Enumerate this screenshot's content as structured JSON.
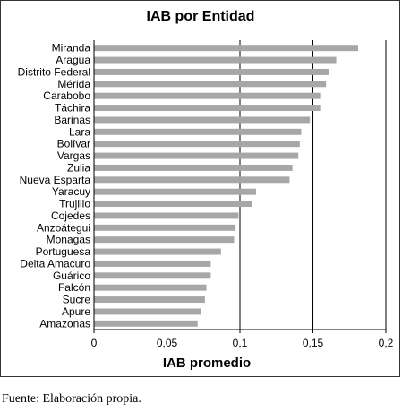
{
  "chart_data": {
    "type": "bar",
    "orientation": "horizontal",
    "title": "IAB por Entidad",
    "xlabel": "IAB promedio",
    "ylabel": "",
    "xlim": [
      0,
      0.2
    ],
    "ticks": [
      "0",
      "0,05",
      "0,1",
      "0,15",
      "0,2"
    ],
    "tick_values": [
      0,
      0.05,
      0.1,
      0.15,
      0.2
    ],
    "grid": true,
    "legend": "none",
    "bar_color": "#a7a7a7",
    "categories": [
      "Miranda",
      "Aragua",
      "Distrito Federal",
      "Mérida",
      "Carabobo",
      "Táchira",
      "Barinas",
      "Lara",
      "Bolívar",
      "Vargas",
      "Zulia",
      "Nueva Esparta",
      "Yaracuy",
      "Trujillo",
      "Cojedes",
      "Anzoátegui",
      "Monagas",
      "Portuguesa",
      "Delta Amacuro",
      "Guárico",
      "Falcón",
      "Sucre",
      "Apure",
      "Amazonas"
    ],
    "values": [
      0.181,
      0.166,
      0.161,
      0.159,
      0.155,
      0.155,
      0.148,
      0.142,
      0.141,
      0.14,
      0.136,
      0.134,
      0.111,
      0.108,
      0.099,
      0.097,
      0.096,
      0.087,
      0.08,
      0.08,
      0.077,
      0.076,
      0.073,
      0.071
    ]
  },
  "source_note": "Fuente: Elaboración propia."
}
